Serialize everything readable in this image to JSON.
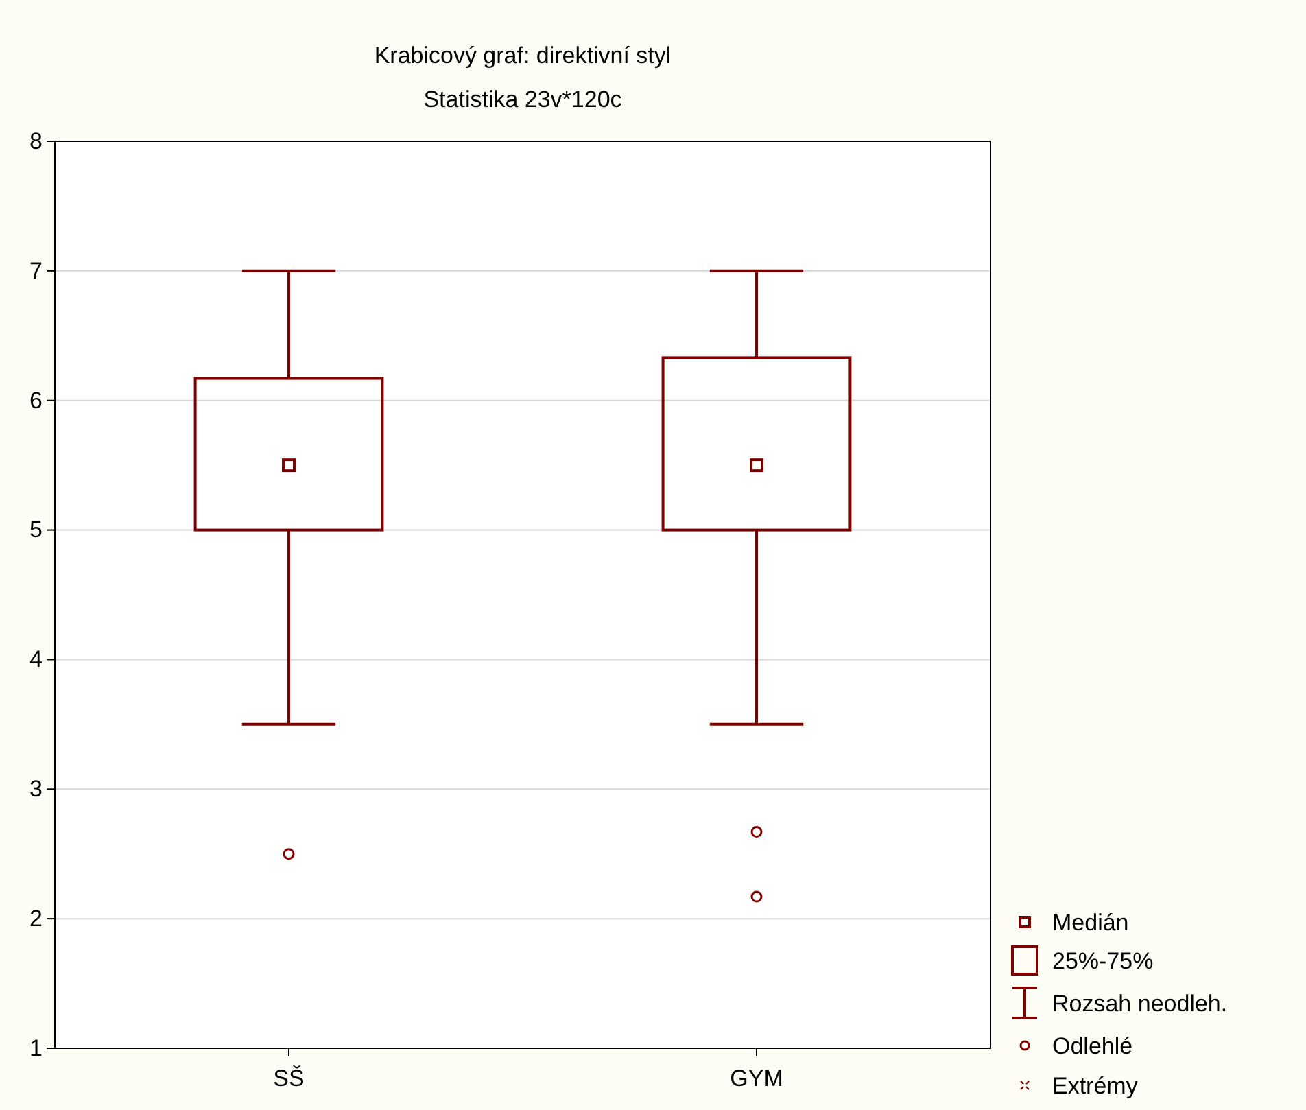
{
  "chart_data": {
    "type": "box",
    "title": "Krabicový graf: direktivní styl",
    "subtitle": "Statistika 23v*120c",
    "categories": [
      "SŠ",
      "GYM"
    ],
    "boxes": [
      {
        "low": 3.5,
        "q1": 5.0,
        "median": 5.5,
        "q3": 6.17,
        "high": 7,
        "outliers": [
          2.5
        ]
      },
      {
        "low": 3.5,
        "q1": 5.0,
        "median": 5.5,
        "q3": 6.33,
        "high": 7,
        "outliers": [
          2.67,
          2.17
        ]
      }
    ],
    "color": "#800000",
    "ylim": [
      1,
      8
    ],
    "yticks": [
      1,
      2,
      3,
      4,
      5,
      6,
      7,
      8
    ],
    "grid": "y",
    "marker": "square",
    "annotations": [
      "Medián",
      "25%-75%",
      "Rozsah neodleh.",
      "Odlehlé",
      "Extrémy"
    ]
  }
}
